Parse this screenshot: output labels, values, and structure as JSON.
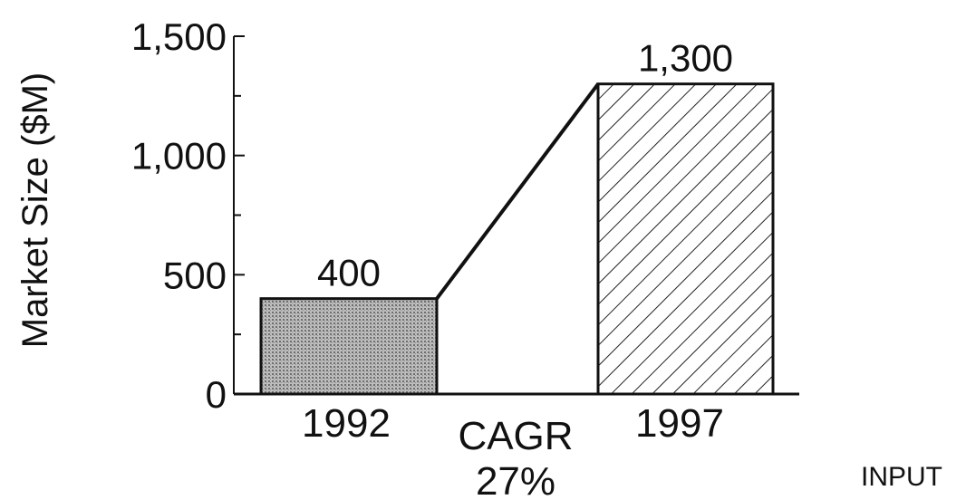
{
  "chart_data": {
    "type": "bar",
    "categories": [
      "1992",
      "1997"
    ],
    "values": [
      400,
      1300
    ],
    "data_labels": [
      "400",
      "1,300"
    ],
    "ylabel": "Market Size ($M)",
    "ylim": [
      0,
      1500
    ],
    "yticks": [
      0,
      500,
      1000,
      1500
    ],
    "ytick_labels": [
      "0",
      "500",
      "1,000",
      "1,500"
    ],
    "minor_tick_step": 250,
    "grid": false,
    "legend": "none",
    "annotation": {
      "line1": "CAGR",
      "line2": "27%"
    },
    "bar_fills": [
      "dotted-gray",
      "diagonal-hatch"
    ]
  },
  "footer": {
    "label": "INPUT"
  }
}
